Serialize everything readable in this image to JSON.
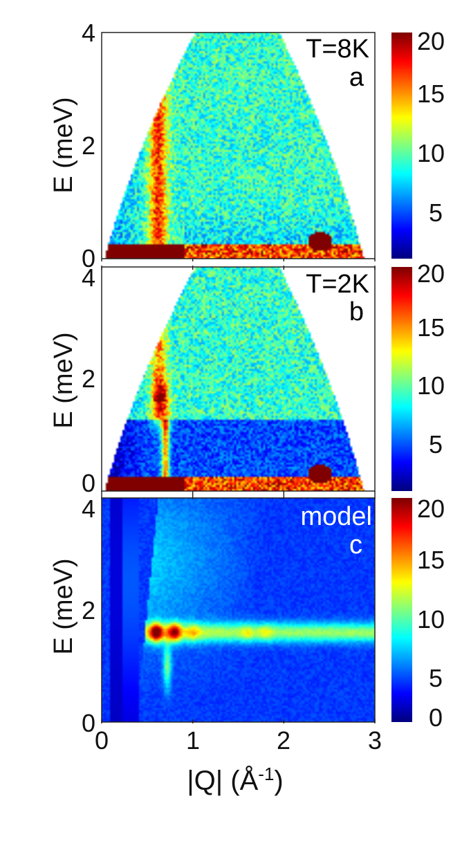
{
  "chart_data": {
    "type": "heatmap",
    "colormap": "jet",
    "x_label_main": "|Q| (Å",
    "x_label_sup": "-1",
    "x_label_close": ")",
    "xlim": [
      0,
      3
    ],
    "x_ticks": [
      "0",
      "1",
      "2",
      "3"
    ],
    "panels": [
      {
        "id": "a",
        "label": "a",
        "annotation": "T=8K",
        "annotation_color": "#000000",
        "ylabel": "E (meV)",
        "ylim": [
          0,
          4
        ],
        "y_ticks": [
          "0",
          "2",
          "4"
        ],
        "colorbar_range": [
          1,
          20
        ],
        "colorbar_ticks": [
          "5",
          "10",
          "15",
          "20"
        ],
        "features": {
          "elastic_line_intensity": 20,
          "magnetic_rod_q": 0.62,
          "magnetic_rod_intensity": 17,
          "background_intensity": 9,
          "bragg_spot": {
            "q": 2.4,
            "e": 0.3,
            "intensity": 20
          }
        }
      },
      {
        "id": "b",
        "label": "b",
        "annotation": "T=2K",
        "annotation_color": "#000000",
        "ylabel": "E (meV)",
        "ylim": [
          0,
          4
        ],
        "y_ticks": [
          "0",
          "2",
          "4"
        ],
        "colorbar_range": [
          1,
          20
        ],
        "colorbar_ticks": [
          "5",
          "10",
          "15",
          "20"
        ],
        "features": {
          "elastic_line_intensity": 20,
          "gap_energy": 1.5,
          "mode_peak": {
            "q": 0.65,
            "e": 1.5,
            "intensity": 20
          },
          "low_energy_intensity": 3,
          "background_intensity": 9,
          "bragg_spot": {
            "q": 2.4,
            "e": 0.3,
            "intensity": 20
          }
        }
      },
      {
        "id": "c",
        "label": "c",
        "annotation": "model",
        "annotation_color": "#ffffff",
        "ylabel": "E (meV)",
        "ylim": [
          0,
          4
        ],
        "y_ticks": [
          "0",
          "2",
          "4"
        ],
        "colorbar_range": [
          0,
          20
        ],
        "colorbar_ticks": [
          "0",
          "5",
          "10",
          "15",
          "20"
        ],
        "features": {
          "mode_energy": 1.6,
          "mode_peaks": [
            {
              "q": 0.6,
              "intensity": 20
            },
            {
              "q": 0.8,
              "intensity": 18
            },
            {
              "q": 1.0,
              "intensity": 12
            },
            {
              "q": 1.6,
              "intensity": 11
            },
            {
              "q": 1.8,
              "intensity": 11
            }
          ],
          "background_intensity": 3
        }
      }
    ]
  }
}
